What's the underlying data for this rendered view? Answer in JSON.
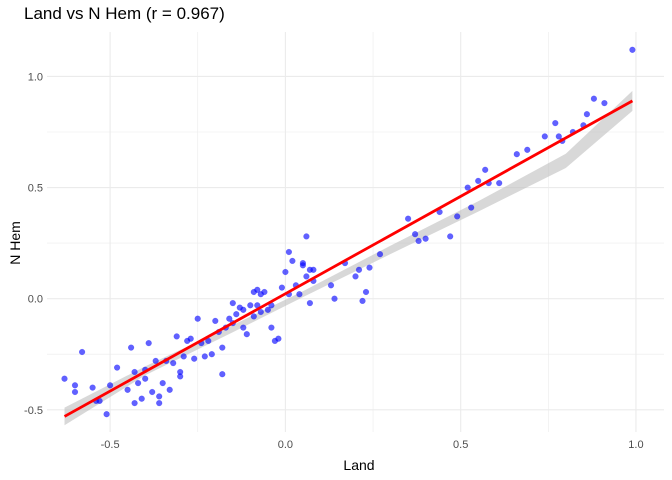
{
  "chart_data": {
    "type": "scatter",
    "title": "Land vs N Hem (r = 0.967)",
    "xlabel": "Land",
    "ylabel": "N Hem",
    "xlim": [
      -0.68,
      1.08
    ],
    "ylim": [
      -0.6,
      1.2
    ],
    "x_ticks": [
      -0.5,
      0.0,
      0.5,
      1.0
    ],
    "x_tick_labels": [
      "-0.5",
      "0.0",
      "0.5",
      "1.0"
    ],
    "y_ticks": [
      -0.5,
      0.0,
      0.5,
      1.0
    ],
    "y_tick_labels": [
      "-0.5",
      "0.0",
      "0.5",
      "1.0"
    ],
    "grid": true,
    "colors": {
      "points": "#0000ff",
      "fit_line": "#ff0000",
      "confidence_band": "#bebebe",
      "grid": "#ebebeb"
    },
    "points": [
      [
        -0.63,
        -0.36
      ],
      [
        -0.6,
        -0.39
      ],
      [
        -0.6,
        -0.42
      ],
      [
        -0.58,
        -0.24
      ],
      [
        -0.55,
        -0.4
      ],
      [
        -0.54,
        -0.46
      ],
      [
        -0.53,
        -0.46
      ],
      [
        -0.51,
        -0.52
      ],
      [
        -0.5,
        -0.39
      ],
      [
        -0.48,
        -0.31
      ],
      [
        -0.45,
        -0.41
      ],
      [
        -0.44,
        -0.22
      ],
      [
        -0.43,
        -0.47
      ],
      [
        -0.43,
        -0.33
      ],
      [
        -0.42,
        -0.38
      ],
      [
        -0.41,
        -0.45
      ],
      [
        -0.4,
        -0.32
      ],
      [
        -0.4,
        -0.36
      ],
      [
        -0.39,
        -0.2
      ],
      [
        -0.38,
        -0.42
      ],
      [
        -0.37,
        -0.28
      ],
      [
        -0.36,
        -0.44
      ],
      [
        -0.36,
        -0.47
      ],
      [
        -0.35,
        -0.38
      ],
      [
        -0.34,
        -0.28
      ],
      [
        -0.33,
        -0.41
      ],
      [
        -0.32,
        -0.29
      ],
      [
        -0.31,
        -0.17
      ],
      [
        -0.3,
        -0.33
      ],
      [
        -0.3,
        -0.35
      ],
      [
        -0.29,
        -0.26
      ],
      [
        -0.28,
        -0.19
      ],
      [
        -0.27,
        -0.18
      ],
      [
        -0.26,
        -0.27
      ],
      [
        -0.25,
        -0.09
      ],
      [
        -0.24,
        -0.2
      ],
      [
        -0.23,
        -0.26
      ],
      [
        -0.22,
        -0.19
      ],
      [
        -0.21,
        -0.25
      ],
      [
        -0.2,
        -0.1
      ],
      [
        -0.19,
        -0.15
      ],
      [
        -0.18,
        -0.22
      ],
      [
        -0.18,
        -0.34
      ],
      [
        -0.17,
        -0.13
      ],
      [
        -0.16,
        -0.09
      ],
      [
        -0.15,
        -0.11
      ],
      [
        -0.15,
        -0.02
      ],
      [
        -0.14,
        -0.07
      ],
      [
        -0.13,
        -0.04
      ],
      [
        -0.12,
        -0.05
      ],
      [
        -0.12,
        -0.13
      ],
      [
        -0.11,
        -0.16
      ],
      [
        -0.1,
        -0.03
      ],
      [
        -0.09,
        0.03
      ],
      [
        -0.09,
        -0.08
      ],
      [
        -0.08,
        -0.03
      ],
      [
        -0.08,
        0.04
      ],
      [
        -0.07,
        0.02
      ],
      [
        -0.07,
        -0.06
      ],
      [
        -0.06,
        0.03
      ],
      [
        -0.05,
        -0.05
      ],
      [
        -0.04,
        -0.03
      ],
      [
        -0.04,
        -0.13
      ],
      [
        -0.03,
        -0.19
      ],
      [
        -0.02,
        -0.18
      ],
      [
        -0.01,
        0.05
      ],
      [
        0.0,
        0.12
      ],
      [
        0.01,
        0.02
      ],
      [
        0.01,
        0.21
      ],
      [
        0.02,
        0.17
      ],
      [
        0.03,
        0.06
      ],
      [
        0.04,
        0.02
      ],
      [
        0.05,
        0.15
      ],
      [
        0.05,
        0.16
      ],
      [
        0.06,
        0.1
      ],
      [
        0.06,
        0.28
      ],
      [
        0.07,
        -0.02
      ],
      [
        0.07,
        0.13
      ],
      [
        0.08,
        0.13
      ],
      [
        0.08,
        0.08
      ],
      [
        0.13,
        0.06
      ],
      [
        0.14,
        -0.0
      ],
      [
        0.17,
        0.16
      ],
      [
        0.2,
        0.1
      ],
      [
        0.21,
        0.13
      ],
      [
        0.22,
        -0.01
      ],
      [
        0.23,
        0.03
      ],
      [
        0.24,
        0.14
      ],
      [
        0.27,
        0.2
      ],
      [
        0.35,
        0.36
      ],
      [
        0.37,
        0.29
      ],
      [
        0.38,
        0.26
      ],
      [
        0.4,
        0.27
      ],
      [
        0.44,
        0.39
      ],
      [
        0.47,
        0.28
      ],
      [
        0.49,
        0.37
      ],
      [
        0.52,
        0.5
      ],
      [
        0.53,
        0.41
      ],
      [
        0.55,
        0.53
      ],
      [
        0.57,
        0.58
      ],
      [
        0.58,
        0.52
      ],
      [
        0.61,
        0.52
      ],
      [
        0.66,
        0.65
      ],
      [
        0.69,
        0.67
      ],
      [
        0.74,
        0.73
      ],
      [
        0.77,
        0.79
      ],
      [
        0.78,
        0.73
      ],
      [
        0.79,
        0.71
      ],
      [
        0.82,
        0.75
      ],
      [
        0.85,
        0.78
      ],
      [
        0.86,
        0.83
      ],
      [
        0.88,
        0.9
      ],
      [
        0.91,
        0.88
      ],
      [
        0.99,
        1.12
      ]
    ],
    "fit_line": {
      "x": [
        -0.63,
        0.99
      ],
      "y": [
        -0.53,
        0.89
      ]
    },
    "confidence_band": {
      "x": [
        -0.63,
        -0.4,
        -0.15,
        0.05,
        0.3,
        0.55,
        0.8,
        0.99
      ],
      "lower": [
        -0.57,
        -0.345,
        -0.151,
        0.007,
        0.201,
        0.392,
        0.588,
        0.845
      ],
      "upper": [
        -0.49,
        -0.305,
        -0.119,
        0.033,
        0.239,
        0.438,
        0.652,
        0.935
      ]
    }
  }
}
